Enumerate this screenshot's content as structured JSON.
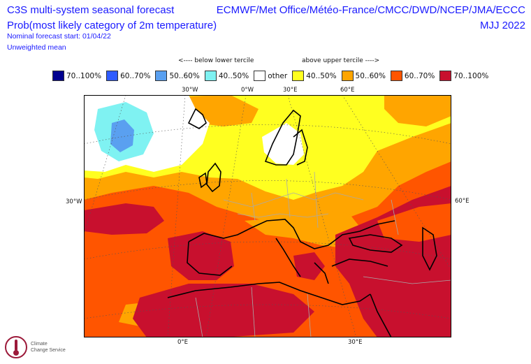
{
  "header": {
    "title_line1": "C3S multi-system seasonal forecast",
    "title_line2": "Prob(most likely category of 2m temperature)",
    "forecast_start": "Nominal forecast start: 01/04/22",
    "mean_type": "Unweighted mean",
    "models": "ECMWF/Met Office/Météo-France/CMCC/DWD/NCEP/JMA/ECCC",
    "season": "MJJ 2022"
  },
  "legend": {
    "below_label": "<---- below lower tercile",
    "above_label": "above upper tercile ---->",
    "items": [
      {
        "label": "70..100%",
        "color": "#00008f"
      },
      {
        "label": "60..70%",
        "color": "#2f5cff"
      },
      {
        "label": "50..60%",
        "color": "#5aa0f0"
      },
      {
        "label": "40..50%",
        "color": "#7ff2f2"
      },
      {
        "label": "other",
        "color": "#ffffff"
      },
      {
        "label": "40..50%",
        "color": "#ffff20"
      },
      {
        "label": "50..60%",
        "color": "#ffa500"
      },
      {
        "label": "60..70%",
        "color": "#ff5500"
      },
      {
        "label": "70..100%",
        "color": "#c8102e"
      }
    ]
  },
  "grid_labels": {
    "top_30w": "30°W",
    "top_0w": "0°W",
    "top_30e": "30°E",
    "top_60e": "60°E",
    "left_30w": "30°W",
    "right_60e": "60°E",
    "bottom_0e": "0°E",
    "bottom_30e": "30°E"
  },
  "logo": {
    "line1": "Climate",
    "line2": "Change Service"
  }
}
